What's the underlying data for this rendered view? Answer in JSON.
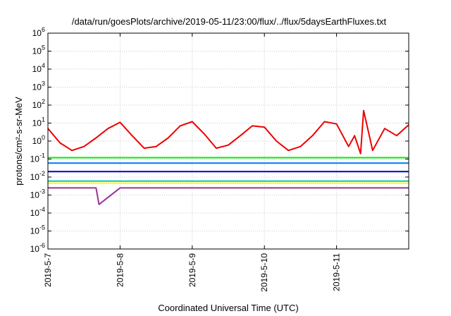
{
  "chart_data": {
    "type": "line",
    "title": "/data/run/goesPlots/archive/2019-05-11/23:00/flux/../flux/5daysEarthFluxes.txt",
    "xlabel": "Coordinated Universal Time (UTC)",
    "ylabel": "protons/cm²-s-sr-MeV",
    "y_scale": "log",
    "ylim": [
      1e-06,
      1000000.0
    ],
    "xlim": [
      "2019-05-07",
      "2019-05-12"
    ],
    "x_ticks": [
      "2019-5-7",
      "2019-5-8",
      "2019-5-9",
      "2019-5-10",
      "2019-5-11"
    ],
    "y_ticks": [
      {
        "base": "10",
        "exp": "6"
      },
      {
        "base": "10",
        "exp": "5"
      },
      {
        "base": "10",
        "exp": "4"
      },
      {
        "base": "10",
        "exp": "3"
      },
      {
        "base": "10",
        "exp": "2"
      },
      {
        "base": "10",
        "exp": "1"
      },
      {
        "base": "10",
        "exp": "0"
      },
      {
        "base": "10",
        "exp": "-1"
      },
      {
        "base": "10",
        "exp": "-2"
      },
      {
        "base": "10",
        "exp": "-3"
      },
      {
        "base": "10",
        "exp": "-4"
      },
      {
        "base": "10",
        "exp": "-5"
      },
      {
        "base": "10",
        "exp": "-6"
      }
    ],
    "grid": true,
    "series": [
      {
        "color": "#ee0000",
        "x": [
          "2019-05-07T00:00",
          "2019-05-07T04:00",
          "2019-05-07T08:00",
          "2019-05-07T12:00",
          "2019-05-07T16:00",
          "2019-05-07T20:00",
          "2019-05-08T00:00",
          "2019-05-08T04:00",
          "2019-05-08T08:00",
          "2019-05-08T12:00",
          "2019-05-08T16:00",
          "2019-05-08T20:00",
          "2019-05-09T00:00",
          "2019-05-09T04:00",
          "2019-05-09T08:00",
          "2019-05-09T12:00",
          "2019-05-09T16:00",
          "2019-05-09T20:00",
          "2019-05-10T00:00",
          "2019-05-10T04:00",
          "2019-05-10T08:00",
          "2019-05-10T12:00",
          "2019-05-10T16:00",
          "2019-05-10T20:00",
          "2019-05-11T00:00",
          "2019-05-11T04:00",
          "2019-05-11T06:00",
          "2019-05-11T08:00",
          "2019-05-11T09:00",
          "2019-05-11T12:00",
          "2019-05-11T16:00",
          "2019-05-11T20:00",
          "2019-05-12T00:00"
        ],
        "values": [
          5,
          0.8,
          0.3,
          0.5,
          1.5,
          5,
          11,
          2,
          0.4,
          0.5,
          1.5,
          7,
          12,
          2.5,
          0.4,
          0.6,
          2,
          7,
          6,
          1,
          0.3,
          0.5,
          2,
          12,
          9,
          0.5,
          2,
          0.2,
          50,
          0.3,
          5,
          2,
          8
        ]
      },
      {
        "color": "#00ee00",
        "x": [
          "2019-05-07T00:00",
          "2019-05-08T00:00",
          "2019-05-09T00:00",
          "2019-05-10T00:00",
          "2019-05-11T00:00",
          "2019-05-12T00:00"
        ],
        "values": [
          0.12,
          0.12,
          0.12,
          0.12,
          0.12,
          0.12
        ]
      },
      {
        "color": "#0077ff",
        "x": [
          "2019-05-07T00:00",
          "2019-05-08T00:00",
          "2019-05-09T00:00",
          "2019-05-10T00:00",
          "2019-05-11T00:00",
          "2019-05-12T00:00"
        ],
        "values": [
          0.06,
          0.06,
          0.06,
          0.06,
          0.06,
          0.06
        ]
      },
      {
        "color": "#0000cc",
        "x": [
          "2019-05-07T00:00",
          "2019-05-08T00:00",
          "2019-05-09T00:00",
          "2019-05-10T00:00",
          "2019-05-11T00:00",
          "2019-05-12T00:00"
        ],
        "values": [
          0.02,
          0.02,
          0.02,
          0.02,
          0.02,
          0.02
        ]
      },
      {
        "color": "#00c8c8",
        "x": [
          "2019-05-07T00:00",
          "2019-05-08T00:00",
          "2019-05-09T00:00",
          "2019-05-10T00:00",
          "2019-05-11T00:00",
          "2019-05-12T00:00"
        ],
        "values": [
          0.006,
          0.006,
          0.006,
          0.006,
          0.006,
          0.006
        ]
      },
      {
        "color": "#ffff00",
        "x": [
          "2019-05-07T00:00",
          "2019-05-08T00:00",
          "2019-05-09T00:00",
          "2019-05-10T00:00",
          "2019-05-11T00:00",
          "2019-05-12T00:00"
        ],
        "values": [
          0.0045,
          0.0045,
          0.0045,
          0.0045,
          0.0045,
          0.0045
        ]
      },
      {
        "color": "#993399",
        "x": [
          "2019-05-07T00:00",
          "2019-05-07T16:00",
          "2019-05-07T17:00",
          "2019-05-08T00:00",
          "2019-05-09T00:00",
          "2019-05-10T00:00",
          "2019-05-11T00:00",
          "2019-05-12T00:00"
        ],
        "values": [
          0.0025,
          0.0025,
          0.0003,
          0.0025,
          0.0025,
          0.0025,
          0.0025,
          0.0025
        ]
      }
    ]
  }
}
